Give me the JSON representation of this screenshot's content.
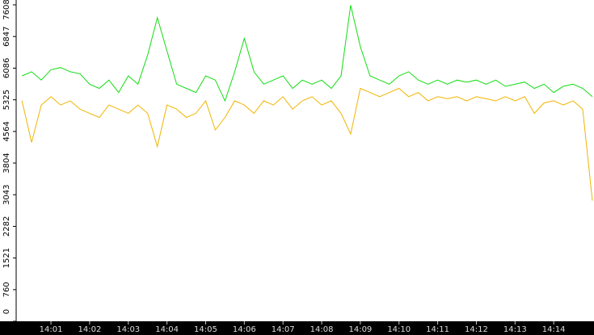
{
  "chart_data": {
    "type": "line",
    "categories": [
      null,
      null,
      null,
      "14:01",
      null,
      null,
      null,
      "14:02",
      null,
      null,
      null,
      "14:03",
      null,
      null,
      null,
      "14:04",
      null,
      null,
      null,
      "14:05",
      null,
      null,
      null,
      "14:06",
      null,
      null,
      null,
      "14:07",
      null,
      null,
      null,
      "14:08",
      null,
      null,
      null,
      "14:09",
      null,
      null,
      null,
      "14:10",
      null,
      null,
      null,
      "14:11",
      null,
      null,
      null,
      "14:12",
      null,
      null,
      null,
      "14:13",
      null,
      null,
      null,
      "14:14",
      null,
      null,
      null,
      null
    ],
    "series": [
      {
        "color": "#11dd11",
        "values": [
          5900,
          6000,
          5800,
          6050,
          6100,
          6000,
          5950,
          5700,
          5600,
          5800,
          5500,
          5900,
          5700,
          6400,
          7300,
          6500,
          5700,
          5600,
          5500,
          5900,
          5800,
          5300,
          6000,
          6800,
          6000,
          5700,
          5800,
          5900,
          5600,
          5800,
          5700,
          5800,
          5600,
          5900,
          7600,
          6600,
          5900,
          5800,
          5700,
          5900,
          6000,
          5800,
          5700,
          5800,
          5700,
          5800,
          5750,
          5800,
          5700,
          5800,
          5650,
          5700,
          5750,
          5600,
          5700,
          5500,
          5650,
          5700,
          5600,
          5400
        ]
      },
      {
        "color": "#f0b400",
        "values": [
          5300,
          4300,
          5200,
          5400,
          5200,
          5300,
          5100,
          5000,
          4900,
          5200,
          5100,
          5000,
          5200,
          5000,
          4200,
          5200,
          5100,
          4900,
          5000,
          5300,
          4600,
          4900,
          5300,
          5200,
          5000,
          5300,
          5200,
          5400,
          5100,
          5300,
          5400,
          5200,
          5300,
          5000,
          4500,
          5600,
          5500,
          5400,
          5500,
          5600,
          5400,
          5500,
          5300,
          5400,
          5350,
          5400,
          5300,
          5400,
          5350,
          5300,
          5400,
          5300,
          5400,
          5000,
          5250,
          5300,
          5200,
          5300,
          5100,
          2900
        ]
      }
    ],
    "ylim": [
      0,
      7608
    ],
    "yticks": [
      0,
      760,
      1521,
      2282,
      3043,
      3804,
      4564,
      5325,
      6086,
      6847,
      7608
    ]
  }
}
